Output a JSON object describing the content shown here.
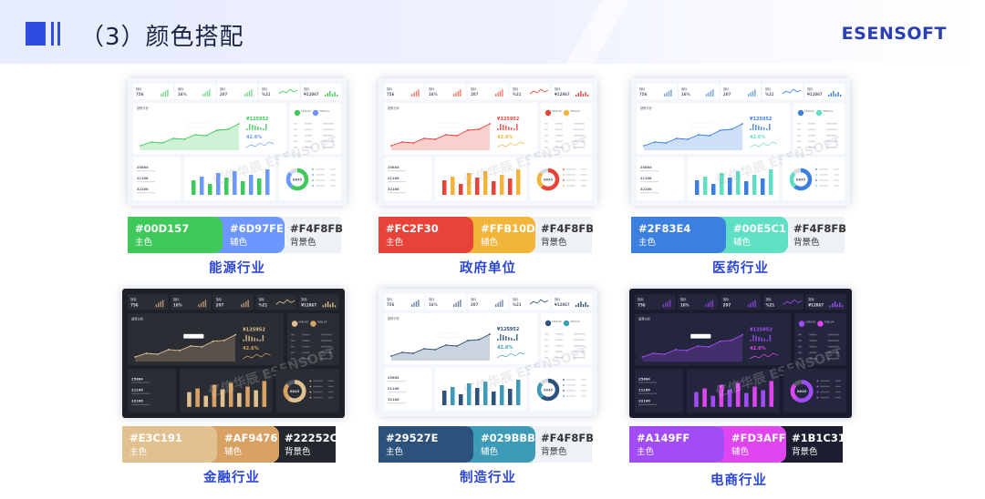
{
  "header": {
    "title": "（3）颜色搭配",
    "brand": "ESENSOFT"
  },
  "roles": {
    "main": "主色",
    "sub": "辅色",
    "bg": "背景色"
  },
  "cards": [
    {
      "industry": "能源行业",
      "theme": "light",
      "main_hex": "#00D157",
      "sub_hex": "#6D97FE",
      "bg_hex": "#F4F8FB",
      "main_color": "#3ec95a",
      "sub_color": "#6d97fe",
      "bg_color": "#eef2f7",
      "main_text": "#ffffff",
      "sub_text": "#ffffff",
      "bg_text": "#333333",
      "watermark": "亿信华辰 ESENSOFT"
    },
    {
      "industry": "政府单位",
      "theme": "light",
      "main_hex": "#FC2F30",
      "sub_hex": "#FFB10D",
      "bg_hex": "#F4F8FB",
      "main_color": "#e84338",
      "sub_color": "#f3b43a",
      "bg_color": "#eef2f7",
      "main_text": "#ffffff",
      "sub_text": "#ffffff",
      "bg_text": "#333333",
      "watermark": "亿信华辰 ESENSOFT"
    },
    {
      "industry": "医药行业",
      "theme": "light",
      "main_hex": "#2F83E4",
      "sub_hex": "#00E5C1",
      "bg_hex": "#F4F8FB",
      "main_color": "#3b7fe0",
      "sub_color": "#5fe0c4",
      "bg_color": "#eef2f7",
      "main_text": "#ffffff",
      "sub_text": "#ffffff",
      "bg_text": "#333333",
      "watermark": "亿信华辰 ESENSOFT"
    },
    {
      "industry": "金融行业",
      "theme": "dark",
      "main_hex": "#E3C191",
      "sub_hex": "#AF9476",
      "bg_hex": "#22252C",
      "main_color": "#e2c190",
      "sub_color": "#d8a264",
      "bg_color": "#24272e",
      "main_text": "#ffffff",
      "sub_text": "#ffffff",
      "bg_text": "#ffffff",
      "watermark": "亿信华辰 ESENSOFT"
    },
    {
      "industry": "制造行业",
      "theme": "light",
      "main_hex": "#29527E",
      "sub_hex": "#029BBB",
      "bg_hex": "#F4F8FB",
      "main_color": "#2c527c",
      "sub_color": "#3e9bb7",
      "bg_color": "#eef2f7",
      "main_text": "#ffffff",
      "sub_text": "#ffffff",
      "bg_text": "#333333",
      "watermark": "亿信华辰 ESENSOFT"
    },
    {
      "industry": "电商行业",
      "theme": "darkpurple",
      "main_hex": "#A149FF",
      "sub_hex": "#FD3AFF",
      "bg_hex": "#1B1C31",
      "main_color": "#a14cf6",
      "sub_color": "#e046ef",
      "bg_color": "#1c1d30",
      "main_text": "#ffffff",
      "sub_text": "#ffffff",
      "bg_text": "#ffffff",
      "watermark": "亿信华辰 ESENSOFT"
    }
  ],
  "mini_dashboard": {
    "kpi_values": [
      "756",
      "16%",
      "207",
      "%21",
      "¥12867"
    ],
    "big_value": "¥125952",
    "pct_value": "42.6%",
    "list_values": [
      "25884",
      "21166",
      "32166"
    ],
    "donut_value": "8845",
    "legend_values": [
      "1549.42",
      "7056.24"
    ]
  }
}
